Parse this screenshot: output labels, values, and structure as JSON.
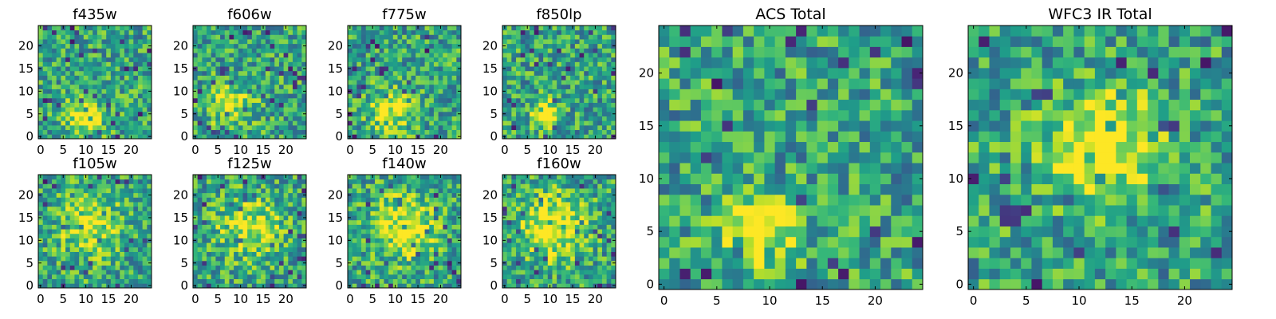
{
  "chart_data": [
    {
      "type": "heatmap",
      "title": "f435w",
      "xticks": [
        "0",
        "5",
        "10",
        "15",
        "20"
      ],
      "yticks": [
        "0",
        "5",
        "10",
        "15",
        "20"
      ],
      "xlim": [
        -0.5,
        24.5
      ],
      "ylim": [
        -0.5,
        24.5
      ],
      "colormap": "viridis",
      "grid": false,
      "seed": 11,
      "blobs": [
        {
          "x": 10,
          "y": 4,
          "s": 3.0,
          "a": 0.45
        }
      ]
    },
    {
      "type": "heatmap",
      "title": "f606w",
      "xticks": [
        "0",
        "5",
        "10",
        "15",
        "20"
      ],
      "yticks": [
        "0",
        "5",
        "10",
        "15",
        "20"
      ],
      "xlim": [
        -0.5,
        24.5
      ],
      "ylim": [
        -0.5,
        24.5
      ],
      "colormap": "viridis",
      "grid": false,
      "seed": 23,
      "blobs": [
        {
          "x": 8,
          "y": 7,
          "s": 3.5,
          "a": 0.35
        }
      ]
    },
    {
      "type": "heatmap",
      "title": "f775w",
      "xticks": [
        "0",
        "5",
        "10",
        "15",
        "20"
      ],
      "yticks": [
        "0",
        "5",
        "10",
        "15",
        "20"
      ],
      "xlim": [
        -0.5,
        24.5
      ],
      "ylim": [
        -0.5,
        24.5
      ],
      "colormap": "viridis",
      "grid": false,
      "seed": 37,
      "blobs": [
        {
          "x": 9,
          "y": 6,
          "s": 3.5,
          "a": 0.35
        }
      ]
    },
    {
      "type": "heatmap",
      "title": "f850lp",
      "xticks": [
        "0",
        "5",
        "10",
        "15",
        "20"
      ],
      "yticks": [
        "0",
        "5",
        "10",
        "15",
        "20"
      ],
      "xlim": [
        -0.5,
        24.5
      ],
      "ylim": [
        -0.5,
        24.5
      ],
      "colormap": "viridis",
      "grid": false,
      "seed": 41,
      "blobs": [
        {
          "x": 9,
          "y": 5,
          "s": 2.0,
          "a": 0.6
        }
      ]
    },
    {
      "type": "heatmap",
      "title": "f105w",
      "xticks": [
        "0",
        "5",
        "10",
        "15",
        "20"
      ],
      "yticks": [
        "0",
        "5",
        "10",
        "15",
        "20"
      ],
      "xlim": [
        -0.5,
        24.5
      ],
      "ylim": [
        -0.5,
        24.5
      ],
      "colormap": "viridis",
      "grid": false,
      "seed": 53,
      "blobs": [
        {
          "x": 11,
          "y": 13,
          "s": 5.0,
          "a": 0.35
        }
      ]
    },
    {
      "type": "heatmap",
      "title": "f125w",
      "xticks": [
        "0",
        "5",
        "10",
        "15",
        "20"
      ],
      "yticks": [
        "0",
        "5",
        "10",
        "15",
        "20"
      ],
      "xlim": [
        -0.5,
        24.5
      ],
      "ylim": [
        -0.5,
        24.5
      ],
      "colormap": "viridis",
      "grid": false,
      "seed": 67,
      "blobs": [
        {
          "x": 12,
          "y": 13,
          "s": 5.0,
          "a": 0.35
        }
      ]
    },
    {
      "type": "heatmap",
      "title": "f140w",
      "xticks": [
        "0",
        "5",
        "10",
        "15",
        "20"
      ],
      "yticks": [
        "0",
        "5",
        "10",
        "15",
        "20"
      ],
      "xlim": [
        -0.5,
        24.5
      ],
      "ylim": [
        -0.5,
        24.5
      ],
      "colormap": "viridis",
      "grid": false,
      "seed": 79,
      "blobs": [
        {
          "x": 12,
          "y": 13,
          "s": 5.0,
          "a": 0.4
        }
      ]
    },
    {
      "type": "heatmap",
      "title": "f160w",
      "xticks": [
        "0",
        "5",
        "10",
        "15",
        "20"
      ],
      "yticks": [
        "0",
        "5",
        "10",
        "15",
        "20"
      ],
      "xlim": [
        -0.5,
        24.5
      ],
      "ylim": [
        -0.5,
        24.5
      ],
      "colormap": "viridis",
      "grid": false,
      "seed": 83,
      "blobs": [
        {
          "x": 11,
          "y": 13,
          "s": 5.0,
          "a": 0.45
        }
      ]
    },
    {
      "type": "heatmap",
      "title": "ACS Total",
      "xticks": [
        "0",
        "5",
        "10",
        "15",
        "20"
      ],
      "yticks": [
        "0",
        "5",
        "10",
        "15",
        "20"
      ],
      "xlim": [
        -0.5,
        24.5
      ],
      "ylim": [
        -0.5,
        24.5
      ],
      "colormap": "viridis",
      "grid": false,
      "seed": 97,
      "blobs": [
        {
          "x": 9,
          "y": 5,
          "s": 2.2,
          "a": 0.6
        }
      ]
    },
    {
      "type": "heatmap",
      "title": "WFC3 IR Total",
      "xticks": [
        "0",
        "5",
        "10",
        "15",
        "20"
      ],
      "yticks": [
        "0",
        "5",
        "10",
        "15",
        "20"
      ],
      "xlim": [
        -0.5,
        24.5
      ],
      "ylim": [
        -0.5,
        24.5
      ],
      "colormap": "viridis",
      "grid": false,
      "seed": 101,
      "blobs": [
        {
          "x": 12,
          "y": 13,
          "s": 3.5,
          "a": 0.55
        }
      ]
    }
  ]
}
